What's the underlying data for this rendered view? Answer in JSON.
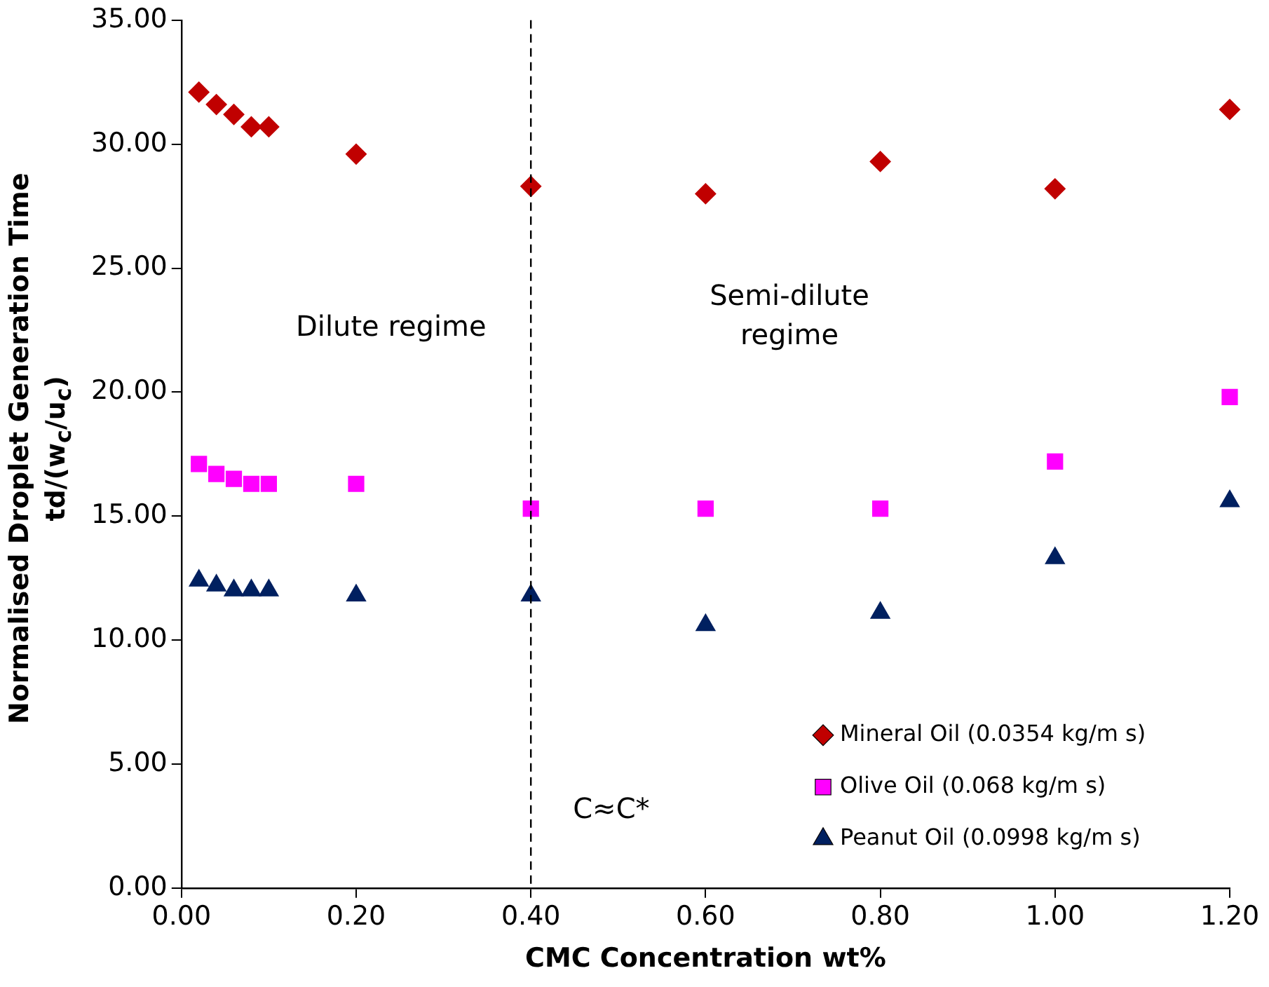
{
  "chart_data": {
    "type": "scatter",
    "xlabel": "CMC Concentration wt%",
    "ylabel": "Normalised Droplet Generation Time\ntd/(w$_{c}$/u$_{c}$)",
    "x": [
      0.02,
      0.04,
      0.06,
      0.08,
      0.1,
      0.2,
      0.4,
      0.6,
      0.8,
      1.0,
      1.2
    ],
    "series": [
      {
        "name": "Mineral Oil (0.0354 kg/m s)",
        "color": "#c00000",
        "marker": "diamond",
        "values": [
          32.1,
          31.6,
          31.2,
          30.7,
          30.7,
          29.6,
          28.3,
          28.0,
          29.3,
          28.2,
          31.4
        ]
      },
      {
        "name": "Olive Oil (0.068 kg/m s)",
        "color": "#ff00ff",
        "marker": "square",
        "values": [
          17.1,
          16.7,
          16.5,
          16.3,
          16.3,
          16.3,
          15.3,
          15.3,
          15.3,
          17.2,
          19.8
        ]
      },
      {
        "name": "Peanut Oil (0.0998 kg/m s)",
        "color": "#002060",
        "marker": "triangle",
        "values": [
          12.4,
          12.2,
          12.0,
          12.0,
          12.0,
          11.8,
          11.8,
          10.6,
          11.1,
          13.3,
          15.6
        ]
      }
    ],
    "xlim": [
      0,
      1.2
    ],
    "xticks": [
      {
        "value": 0,
        "label": "0.00"
      },
      {
        "value": 0.2,
        "label": "0.20"
      },
      {
        "value": 0.4,
        "label": "0.40"
      },
      {
        "value": 0.6,
        "label": "0.60"
      },
      {
        "value": 0.8,
        "label": "0.80"
      },
      {
        "value": 1.0,
        "label": "1.00"
      },
      {
        "value": 1.2,
        "label": "1.20"
      }
    ],
    "ylim": [
      0,
      35
    ],
    "yticks": [
      {
        "value": 0,
        "label": "0.00"
      },
      {
        "value": 5,
        "label": "5.00"
      },
      {
        "value": 10,
        "label": "10.00"
      },
      {
        "value": 15,
        "label": "15.00"
      },
      {
        "value": 20,
        "label": "20.00"
      },
      {
        "value": 25,
        "label": "25.00"
      },
      {
        "value": 30,
        "label": "30.00"
      },
      {
        "value": 35,
        "label": "35.00"
      }
    ],
    "ref_lines": [
      {
        "axis": "x",
        "value": 0.4,
        "label": "C≈C*",
        "color": "#000000",
        "line_style": "dashed"
      }
    ],
    "annotations": [
      "Dilute regime",
      "Semi-dilute\nregime"
    ],
    "legend": "bottom right",
    "grid": false
  }
}
